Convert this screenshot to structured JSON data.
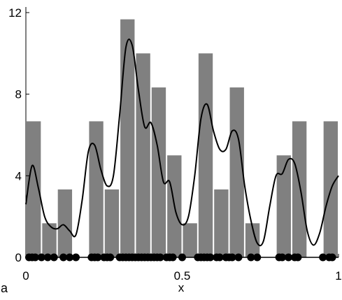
{
  "chart_data": {
    "type": "bar",
    "title": "",
    "xlabel": "x",
    "ylabel": "",
    "panel_label": "a",
    "xlim": [
      0,
      1
    ],
    "ylim": [
      0,
      12
    ],
    "x_ticks": [
      0,
      0.5,
      1
    ],
    "x_tick_labels": [
      "0",
      "0.5",
      "1"
    ],
    "y_ticks": [
      0,
      4,
      8,
      12
    ],
    "y_tick_labels": [
      "0",
      "4",
      "8",
      "12"
    ],
    "grid": false,
    "legend": "none",
    "histogram": {
      "bin_width": 0.05,
      "bin_starts": [
        0.0,
        0.05,
        0.1,
        0.15,
        0.2,
        0.25,
        0.3,
        0.35,
        0.4,
        0.45,
        0.5,
        0.55,
        0.6,
        0.65,
        0.7,
        0.75,
        0.8,
        0.85,
        0.9,
        0.95
      ],
      "values": [
        6.67,
        1.67,
        3.33,
        0,
        6.67,
        3.33,
        11.67,
        10.0,
        8.33,
        5.0,
        1.67,
        10.0,
        3.33,
        8.33,
        1.67,
        0,
        5.0,
        6.67,
        0,
        6.67
      ],
      "color": "#808080"
    },
    "density_curve": {
      "x": [
        0.0,
        0.02,
        0.04,
        0.06,
        0.08,
        0.1,
        0.12,
        0.14,
        0.16,
        0.18,
        0.2,
        0.22,
        0.24,
        0.26,
        0.28,
        0.3,
        0.32,
        0.34,
        0.36,
        0.38,
        0.4,
        0.42,
        0.44,
        0.46,
        0.48,
        0.5,
        0.52,
        0.54,
        0.56,
        0.58,
        0.6,
        0.62,
        0.64,
        0.66,
        0.68,
        0.7,
        0.72,
        0.74,
        0.76,
        0.78,
        0.8,
        0.82,
        0.84,
        0.86,
        0.88,
        0.9,
        0.92,
        0.94,
        0.96,
        0.98,
        1.0
      ],
      "y": [
        2.6,
        4.5,
        3.4,
        2.0,
        1.5,
        1.4,
        1.6,
        1.3,
        1.1,
        2.8,
        5.2,
        5.5,
        4.3,
        3.5,
        4.0,
        7.0,
        10.3,
        10.4,
        8.2,
        6.4,
        6.6,
        5.5,
        3.7,
        3.7,
        2.2,
        1.6,
        2.0,
        4.0,
        6.8,
        7.5,
        6.2,
        5.3,
        5.3,
        6.2,
        5.8,
        3.5,
        1.8,
        0.7,
        0.8,
        2.5,
        4.0,
        4.1,
        4.8,
        4.6,
        3.2,
        1.3,
        0.6,
        1.2,
        2.5,
        3.5,
        4.0
      ],
      "color": "#000000"
    },
    "samples": {
      "x": [
        0.01,
        0.02,
        0.03,
        0.05,
        0.07,
        0.09,
        0.12,
        0.14,
        0.16,
        0.21,
        0.22,
        0.23,
        0.25,
        0.26,
        0.27,
        0.3,
        0.31,
        0.32,
        0.33,
        0.34,
        0.35,
        0.36,
        0.37,
        0.38,
        0.39,
        0.4,
        0.41,
        0.42,
        0.43,
        0.45,
        0.46,
        0.47,
        0.5,
        0.55,
        0.56,
        0.57,
        0.58,
        0.59,
        0.61,
        0.62,
        0.64,
        0.65,
        0.66,
        0.68,
        0.72,
        0.74,
        0.81,
        0.82,
        0.84,
        0.86,
        0.87,
        0.95,
        0.97,
        0.98
      ],
      "color": "#000000"
    }
  }
}
